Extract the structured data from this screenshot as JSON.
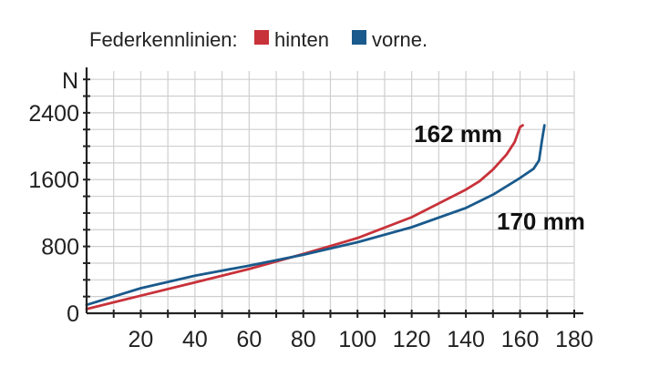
{
  "chart_data": {
    "type": "line",
    "title": "",
    "legend": {
      "label": "Federkennlinien:",
      "placement": "top-left",
      "entries": [
        {
          "name": "hinten",
          "color": "#c8323a"
        },
        {
          "name": "vorne.",
          "color": "#1a5a8c"
        }
      ]
    },
    "xlabel": "",
    "ylabel": "N",
    "xlim": [
      0,
      180
    ],
    "ylim": [
      0,
      2900
    ],
    "x_ticks": [
      20,
      40,
      60,
      80,
      100,
      120,
      140,
      160,
      180
    ],
    "y_ticks": [
      0,
      800,
      1600,
      2400
    ],
    "grid": true,
    "series": [
      {
        "name": "hinten",
        "color": "#c8323a",
        "end_label": "162 mm",
        "points": [
          [
            0,
            50
          ],
          [
            20,
            210
          ],
          [
            40,
            370
          ],
          [
            60,
            530
          ],
          [
            80,
            710
          ],
          [
            100,
            900
          ],
          [
            120,
            1150
          ],
          [
            140,
            1480
          ],
          [
            145,
            1580
          ],
          [
            150,
            1720
          ],
          [
            155,
            1900
          ],
          [
            158,
            2050
          ],
          [
            160,
            2230
          ],
          [
            161,
            2250
          ]
        ]
      },
      {
        "name": "vorne.",
        "color": "#1a5a8c",
        "end_label": "170 mm",
        "points": [
          [
            0,
            100
          ],
          [
            20,
            300
          ],
          [
            40,
            450
          ],
          [
            60,
            570
          ],
          [
            80,
            700
          ],
          [
            100,
            850
          ],
          [
            120,
            1030
          ],
          [
            140,
            1260
          ],
          [
            150,
            1420
          ],
          [
            160,
            1620
          ],
          [
            165,
            1730
          ],
          [
            167,
            1830
          ],
          [
            168,
            2050
          ],
          [
            169,
            2250
          ]
        ]
      }
    ]
  }
}
